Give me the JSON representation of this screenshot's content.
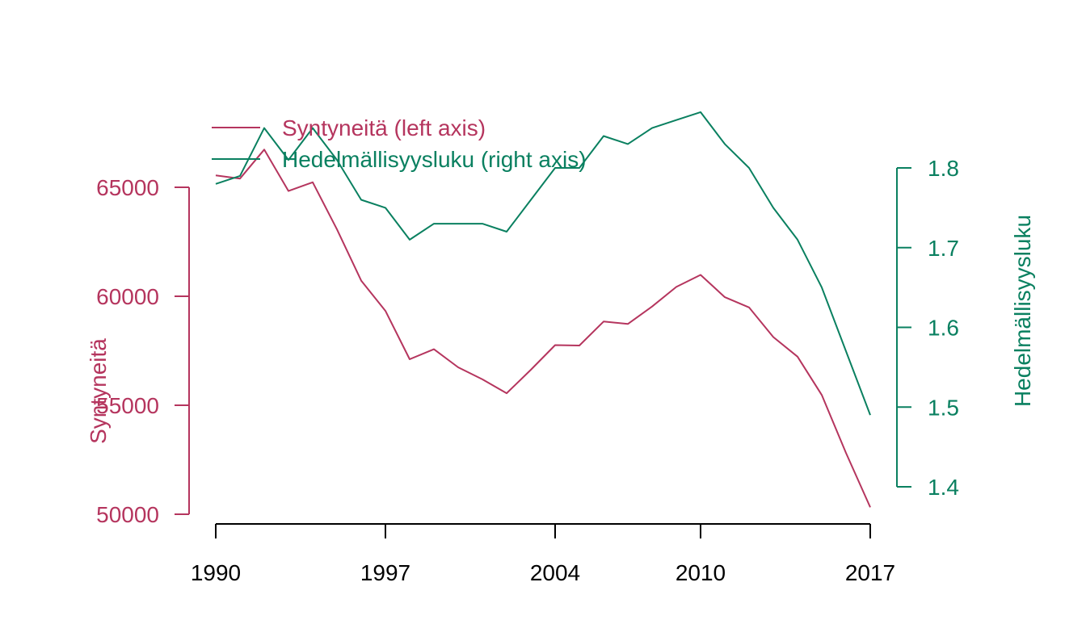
{
  "chart_data": {
    "type": "line",
    "title": "",
    "x": [
      1990,
      1991,
      1992,
      1993,
      1994,
      1995,
      1996,
      1997,
      1998,
      1999,
      2000,
      2001,
      2002,
      2003,
      2004,
      2005,
      2006,
      2007,
      2008,
      2009,
      2010,
      2011,
      2012,
      2013,
      2014,
      2015,
      2016,
      2017
    ],
    "x_ticks": [
      "1990",
      "1997",
      "2004",
      "2010",
      "2017"
    ],
    "xlabel": "",
    "series": [
      {
        "name": "Syntyneitä (left axis)",
        "axis": "left",
        "color": "#B5355E",
        "values": [
          65550,
          65400,
          66730,
          64830,
          65230,
          63070,
          60720,
          59330,
          57110,
          57570,
          56740,
          56190,
          55550,
          56630,
          57760,
          57740,
          58840,
          58730,
          59530,
          60430,
          60980,
          59960,
          59490,
          58130,
          57230,
          55470,
          52810,
          50320
        ]
      },
      {
        "name": "Hedelmällisyysluku (right axis)",
        "axis": "right",
        "color": "#0A8060",
        "values": [
          1.78,
          1.79,
          1.85,
          1.81,
          1.85,
          1.81,
          1.76,
          1.75,
          1.71,
          1.73,
          1.73,
          1.73,
          1.72,
          1.76,
          1.8,
          1.8,
          1.84,
          1.83,
          1.85,
          1.86,
          1.87,
          1.83,
          1.8,
          1.75,
          1.71,
          1.65,
          1.57,
          1.49
        ]
      }
    ],
    "left_axis": {
      "label": "Syntyneitä",
      "ticks": [
        "50000",
        "55000",
        "60000",
        "65000"
      ],
      "tick_values": [
        50000,
        55000,
        60000,
        65000
      ],
      "ylim": [
        50000,
        65000
      ],
      "color": "#B5355E"
    },
    "right_axis": {
      "label": "Hedelmällisyysluku",
      "ticks": [
        "1.4",
        "1.5",
        "1.6",
        "1.7",
        "1.8"
      ],
      "tick_values": [
        1.4,
        1.5,
        1.6,
        1.7,
        1.8
      ],
      "ylim": [
        1.4,
        1.8
      ],
      "color": "#0A8060"
    },
    "legend": {
      "placement": "top-left",
      "entries": [
        "Syntyneitä (left axis)",
        "Hedelmällisyysluku (right axis)"
      ]
    },
    "grid": false
  }
}
